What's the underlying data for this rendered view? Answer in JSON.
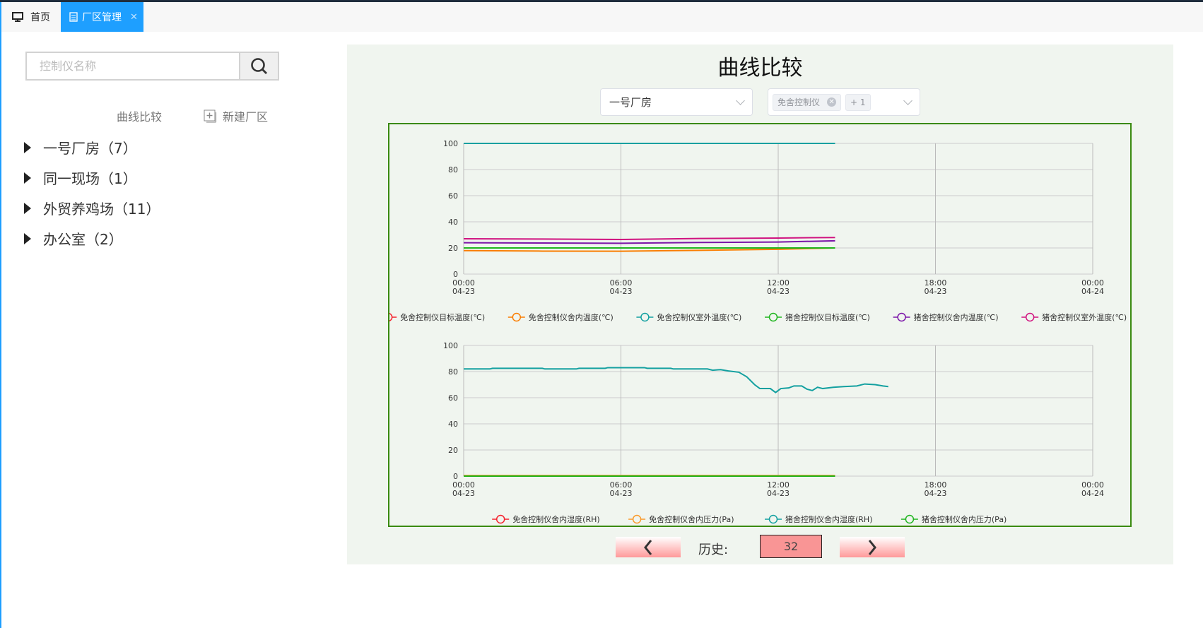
{
  "tabs": {
    "home": "首页",
    "active": "厂区管理"
  },
  "search": {
    "placeholder": "控制仪名称",
    "value": ""
  },
  "actions": {
    "compare": "曲线比较",
    "new_area": "新建厂区"
  },
  "tree": [
    {
      "label": "一号厂房（7）"
    },
    {
      "label": "同一现场（1）"
    },
    {
      "label": "外贸养鸡场（11）"
    },
    {
      "label": "办公室（2）"
    }
  ],
  "panel": {
    "title": "曲线比较",
    "factory_select": "一号厂房",
    "controller_chip": "免舍控制仪",
    "controller_more": "+ 1",
    "history_label": "历史:",
    "history_value": "32"
  },
  "colors": {
    "accent": "#1e9fff",
    "panel_bg": "#f0f5ef",
    "chart_border": "#3a8a10",
    "history_bg": "#f99595"
  },
  "chart_data": [
    {
      "type": "line",
      "ylim": [
        0,
        100
      ],
      "yticks": [
        "0",
        "20",
        "40",
        "60",
        "80",
        "100"
      ],
      "xticks": [
        [
          "00:00",
          "04-23"
        ],
        [
          "06:00",
          "04-23"
        ],
        [
          "12:00",
          "04-23"
        ],
        [
          "18:00",
          "04-23"
        ],
        [
          "00:00",
          "04-24"
        ]
      ],
      "x_unit": "hours since 04-23 00:00",
      "xlim": [
        0,
        24
      ],
      "grid": true,
      "legend": "bottom",
      "series": [
        {
          "name": "免舍控制仪目标温度(℃)",
          "color": "#f5222d",
          "points": []
        },
        {
          "name": "免舍控制仪舍内温度(℃)",
          "color": "#fa7d00",
          "points": [
            [
              0,
              18
            ],
            [
              3,
              17.6
            ],
            [
              6,
              17.5
            ],
            [
              9,
              18.2
            ],
            [
              12,
              19
            ],
            [
              14.17,
              20
            ]
          ]
        },
        {
          "name": "免舍控制仪室外温度(℃)",
          "color": "#13a0a0",
          "points": [
            [
              0,
              100
            ],
            [
              14.17,
              100
            ]
          ]
        },
        {
          "name": "猪舍控制仪目标温度(℃)",
          "color": "#1fb51f",
          "points": [
            [
              0,
              20
            ],
            [
              14.17,
              20
            ]
          ]
        },
        {
          "name": "猪舍控制仪舍内温度(℃)",
          "color": "#7b14a8",
          "points": [
            [
              0,
              24
            ],
            [
              3,
              23.8
            ],
            [
              6,
              23.6
            ],
            [
              9,
              24.2
            ],
            [
              12,
              24.5
            ],
            [
              14.17,
              25.5
            ]
          ]
        },
        {
          "name": "猪舍控制仪室外温度(℃)",
          "color": "#d0127f",
          "points": [
            [
              0,
              27
            ],
            [
              3,
              26.8
            ],
            [
              6,
              26.5
            ],
            [
              9,
              27.2
            ],
            [
              12,
              27.6
            ],
            [
              14.17,
              28
            ]
          ]
        }
      ]
    },
    {
      "type": "line",
      "ylim": [
        0,
        100
      ],
      "yticks": [
        "0",
        "20",
        "40",
        "60",
        "80",
        "100"
      ],
      "xticks": [
        [
          "00:00",
          "04-23"
        ],
        [
          "06:00",
          "04-23"
        ],
        [
          "12:00",
          "04-23"
        ],
        [
          "18:00",
          "04-23"
        ],
        [
          "00:00",
          "04-24"
        ]
      ],
      "xlim": [
        0,
        24
      ],
      "grid": true,
      "legend": "bottom",
      "series": [
        {
          "name": "免舍控制仪舍内湿度(RH)",
          "color": "#f5222d",
          "points": []
        },
        {
          "name": "免舍控制仪舍内压力(Pa)",
          "color": "#fa9a2a",
          "points": [
            [
              0,
              0.5
            ],
            [
              14.17,
              0.5
            ]
          ]
        },
        {
          "name": "猪舍控制仪舍内湿度(RH)",
          "color": "#13a0a0",
          "points": [
            [
              0,
              82
            ],
            [
              1,
              82
            ],
            [
              1.1,
              82.5
            ],
            [
              3,
              82.5
            ],
            [
              3.1,
              82
            ],
            [
              4.3,
              82
            ],
            [
              4.4,
              82.5
            ],
            [
              5.4,
              82.5
            ],
            [
              5.5,
              83
            ],
            [
              6.9,
              83
            ],
            [
              7,
              82.5
            ],
            [
              7.9,
              82.5
            ],
            [
              8,
              82
            ],
            [
              9.3,
              82
            ],
            [
              9.5,
              81
            ],
            [
              9.8,
              81.5
            ],
            [
              10.1,
              80.5
            ],
            [
              10.5,
              79.5
            ],
            [
              10.8,
              76
            ],
            [
              11.1,
              70
            ],
            [
              11.3,
              67
            ],
            [
              11.7,
              67
            ],
            [
              11.9,
              64
            ],
            [
              12.1,
              67
            ],
            [
              12.4,
              67.5
            ],
            [
              12.6,
              69
            ],
            [
              12.9,
              69
            ],
            [
              13.1,
              66.5
            ],
            [
              13.3,
              65.5
            ],
            [
              13.5,
              68
            ],
            [
              13.7,
              67
            ],
            [
              14.1,
              68
            ],
            [
              14.5,
              68.5
            ],
            [
              15,
              69
            ],
            [
              15.3,
              70.5
            ],
            [
              15.7,
              70
            ],
            [
              16.0,
              69
            ],
            [
              16.2,
              68.5
            ]
          ]
        },
        {
          "name": "猪舍控制仪舍内压力(Pa)",
          "color": "#1fb51f",
          "points": [
            [
              0,
              0
            ],
            [
              14.17,
              0
            ]
          ]
        }
      ]
    }
  ]
}
